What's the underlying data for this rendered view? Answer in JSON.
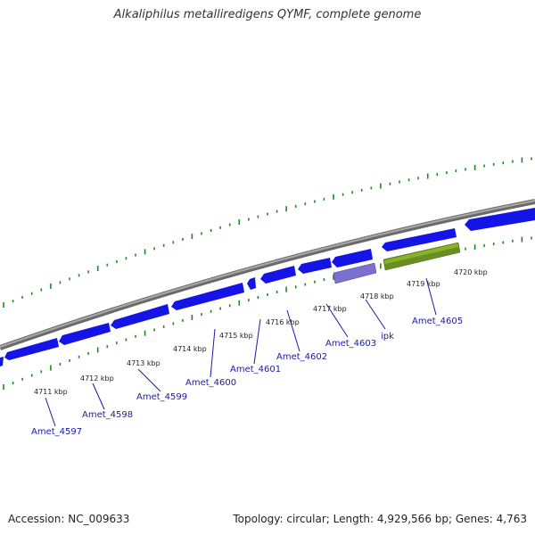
{
  "title": "Alkaliphilus metalliredigens QYMF, complete genome",
  "footer": {
    "accession": "Accession: NC_009633",
    "summary": "Topology: circular; Length: 4,929,566 bp; Genes: 4,763"
  },
  "colors": {
    "backbone": "#808080",
    "gene_forward": "#1414e6",
    "gene_reverse": "#1414e6",
    "gene_highlight": "#7b6fd0",
    "gene_green": "#6b8e23",
    "tick": "#1e8a1e",
    "label": "#1a1aa8"
  },
  "kbp_labels": [
    "4711 kbp",
    "4712 kbp",
    "4713 kbp",
    "4714 kbp",
    "4715 kbp",
    "4716 kbp",
    "4717 kbp",
    "4718 kbp",
    "4719 kbp",
    "4720 kbp"
  ],
  "gene_labels": [
    "Amet_4597",
    "Amet_4598",
    "Amet_4599",
    "Amet_4600",
    "Amet_4601",
    "Amet_4602",
    "Amet_4603",
    "ipk",
    "Amet_4605"
  ]
}
